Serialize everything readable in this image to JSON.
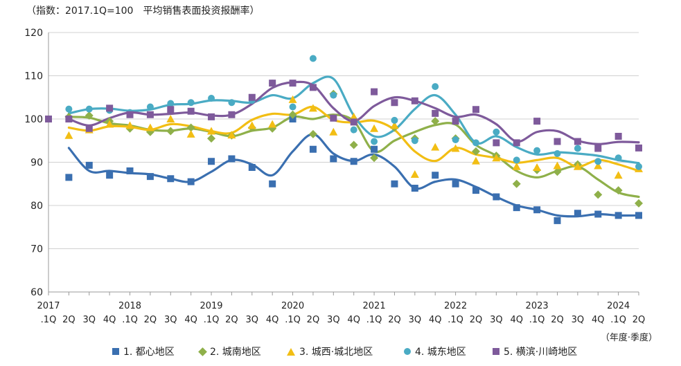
{
  "y_axis_note": "（指数：2017.1Q=100　平均销售表面投资报酬率）",
  "x_axis_note": "（年度·季度）",
  "chart_data": {
    "type": "line",
    "ylim": [
      60,
      120
    ],
    "yticks": [
      60,
      70,
      80,
      90,
      100,
      110,
      120
    ],
    "x_year_labels": [
      "2017",
      "",
      "",
      "",
      "2018",
      "",
      "",
      "",
      "2019",
      "",
      "",
      "",
      "2020",
      "",
      "",
      "",
      "2021",
      "",
      "",
      "",
      "2022",
      "",
      "",
      "",
      "2023",
      "",
      "",
      "",
      "2024",
      ""
    ],
    "x_quarter_labels": [
      ".1Q",
      "2Q",
      "3Q",
      "4Q",
      ".1Q",
      "2Q",
      "3Q",
      "4Q",
      ".1Q",
      "2Q",
      "3Q",
      "4Q",
      ".1Q",
      "2Q",
      "3Q",
      "4Q",
      ".1Q",
      "2Q",
      "3Q",
      "4Q",
      ".1Q",
      "2Q",
      "3Q",
      "4Q",
      ".1Q",
      "2Q",
      "3Q",
      "4Q",
      ".1Q",
      "2Q"
    ],
    "grid": true,
    "legend_position": "bottom",
    "series": [
      {
        "name": "1. 都心地区",
        "color": "#3a6fb0",
        "marker": "square",
        "points": [
          null,
          86.5,
          89.3,
          87.0,
          88.0,
          86.7,
          86.2,
          85.5,
          90.2,
          90.8,
          88.8,
          85.0,
          100.0,
          93.0,
          90.8,
          90.2,
          93.0,
          85.0,
          84.0,
          87.0,
          85.0,
          83.5,
          82.0,
          79.5,
          79.0,
          76.5,
          78.2,
          78.0,
          77.7,
          77.7
        ],
        "trend": [
          null,
          93.3,
          88.0,
          88.0,
          87.5,
          87.2,
          86.2,
          85.5,
          87.8,
          90.5,
          89.5,
          87.0,
          92.5,
          96.5,
          92.0,
          90.3,
          91.8,
          89.0,
          84.0,
          85.5,
          86.0,
          84.3,
          82.0,
          80.0,
          79.0,
          77.7,
          77.5,
          78.0,
          77.7,
          77.7
        ]
      },
      {
        "name": "2. 城南地区",
        "color": "#8fb04a",
        "marker": "diamond",
        "points": [
          null,
          100.5,
          100.8,
          99.5,
          97.8,
          97.0,
          97.2,
          98.0,
          95.5,
          96.2,
          98.0,
          97.8,
          101.0,
          96.5,
          105.8,
          94.0,
          91.0,
          98.0,
          95.5,
          99.5,
          95.5,
          92.5,
          91.5,
          85.0,
          88.2,
          87.8,
          89.5,
          82.5,
          83.5,
          80.5
        ],
        "trend": [
          null,
          100.5,
          100.3,
          99.0,
          98.5,
          97.5,
          97.3,
          97.8,
          97.0,
          96.0,
          97.3,
          98.0,
          100.5,
          100.0,
          101.0,
          99.5,
          92.5,
          95.0,
          97.0,
          98.6,
          98.7,
          94.0,
          91.5,
          88.0,
          86.5,
          88.0,
          89.0,
          86.0,
          83.0,
          82.0
        ]
      },
      {
        "name": "3. 城西·城北地区",
        "color": "#f2be14",
        "marker": "triangle",
        "points": [
          null,
          96.2,
          97.5,
          98.8,
          98.5,
          98.0,
          100.0,
          96.5,
          97.2,
          96.3,
          98.5,
          98.8,
          104.5,
          102.5,
          97.0,
          100.5,
          97.8,
          98.5,
          87.2,
          93.5,
          93.2,
          90.3,
          91.0,
          89.0,
          88.8,
          89.2,
          89.0,
          89.2,
          87.0,
          88.5
        ],
        "trend": [
          null,
          98.0,
          97.3,
          98.3,
          98.2,
          97.5,
          98.8,
          98.3,
          97.2,
          96.8,
          99.8,
          101.2,
          101.0,
          102.8,
          99.8,
          99.2,
          99.6,
          97.5,
          92.5,
          90.3,
          93.3,
          91.8,
          91.0,
          89.9,
          90.5,
          91.0,
          89.0,
          90.5,
          89.5,
          88.0
        ]
      },
      {
        "name": "4. 城东地区",
        "color": "#4aabc4",
        "marker": "circle",
        "points": [
          null,
          102.3,
          102.3,
          102.0,
          101.5,
          102.8,
          103.6,
          103.8,
          104.8,
          103.8,
          104.3,
          108.3,
          102.8,
          114.0,
          105.5,
          97.5,
          94.8,
          99.7,
          95.0,
          107.5,
          95.2,
          94.5,
          97.0,
          90.5,
          92.7,
          92.0,
          93.2,
          90.2,
          91.0,
          89.0
        ],
        "trend": [
          null,
          101.3,
          102.3,
          102.4,
          101.9,
          102.2,
          103.3,
          103.5,
          104.3,
          104.2,
          103.8,
          105.5,
          104.8,
          108.3,
          109.3,
          100.8,
          96.0,
          97.5,
          102.3,
          105.5,
          101.0,
          94.5,
          96.0,
          93.5,
          91.8,
          92.3,
          92.0,
          91.5,
          90.5,
          89.8
        ]
      },
      {
        "name": "5. 横滨·川崎地区",
        "color": "#7e5a9b",
        "marker": "square",
        "points": [
          100.0,
          100.0,
          97.8,
          102.5,
          101.0,
          101.0,
          102.2,
          101.8,
          100.5,
          101.0,
          105.0,
          108.3,
          108.3,
          107.3,
          100.2,
          99.3,
          106.3,
          103.8,
          104.2,
          101.3,
          99.5,
          102.2,
          94.5,
          94.5,
          99.5,
          94.8,
          94.8,
          93.2,
          96.0,
          93.3
        ],
        "trend": [
          null,
          100.0,
          98.5,
          100.2,
          101.5,
          101.0,
          101.2,
          101.5,
          100.8,
          101.0,
          103.5,
          107.2,
          108.5,
          107.8,
          102.5,
          99.5,
          103.0,
          105.0,
          104.2,
          102.5,
          100.5,
          101.0,
          98.8,
          94.8,
          97.0,
          97.2,
          95.0,
          94.2,
          94.7,
          94.6
        ]
      }
    ]
  }
}
